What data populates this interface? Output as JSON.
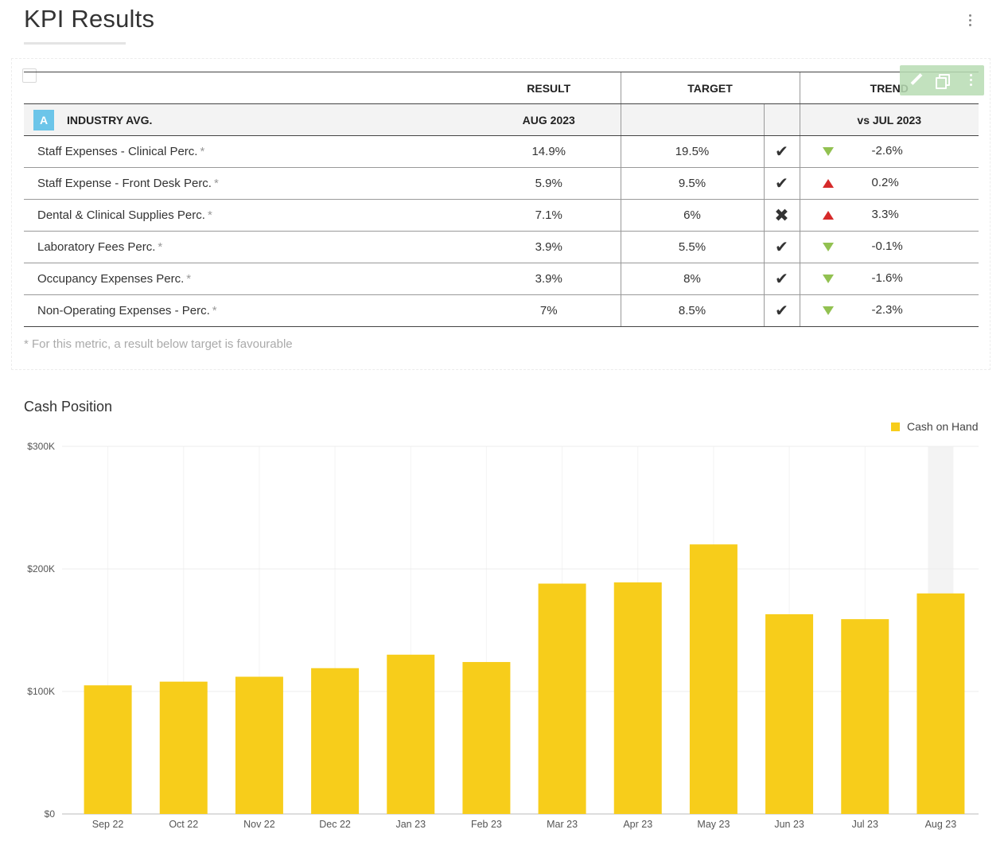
{
  "page": {
    "title": "KPI Results"
  },
  "kpi_table": {
    "headers": {
      "metric": "",
      "result": "RESULT",
      "target": "TARGET",
      "trend": "TREND"
    },
    "group": {
      "badge": "A",
      "label": "INDUSTRY AVG.",
      "result_period": "AUG 2023",
      "trend_period": "vs JUL 2023"
    },
    "rows": [
      {
        "metric": "Staff Expenses - Clinical Perc.",
        "star": "*",
        "result": "14.9%",
        "target": "19.5%",
        "status": "met",
        "trend_dir": "down",
        "trend": "-2.6%"
      },
      {
        "metric": "Staff Expense - Front Desk Perc.",
        "star": "*",
        "result": "5.9%",
        "target": "9.5%",
        "status": "met",
        "trend_dir": "up",
        "trend": "0.2%"
      },
      {
        "metric": "Dental & Clinical Supplies Perc.",
        "star": "*",
        "result": "7.1%",
        "target": "6%",
        "status": "missed",
        "trend_dir": "up",
        "trend": "3.3%"
      },
      {
        "metric": "Laboratory Fees Perc.",
        "star": "*",
        "result": "3.9%",
        "target": "5.5%",
        "status": "met",
        "trend_dir": "down",
        "trend": "-0.1%"
      },
      {
        "metric": "Occupancy Expenses Perc.",
        "star": "*",
        "result": "3.9%",
        "target": "8%",
        "status": "met",
        "trend_dir": "down",
        "trend": "-1.6%"
      },
      {
        "metric": "Non-Operating Expenses - Perc.",
        "star": "*",
        "result": "7%",
        "target": "8.5%",
        "status": "met",
        "trend_dir": "down",
        "trend": "-2.3%"
      }
    ],
    "footnote": "* For this metric, a result below target is favourable",
    "colors": {
      "badge": "#6cc5e9",
      "check": "#7ab648",
      "cross": "#e02828",
      "trend_down": "#92c151",
      "trend_up": "#d62a2a"
    }
  },
  "cash_section": {
    "title": "Cash Position"
  },
  "chart_data": {
    "type": "bar",
    "title": "Cash Position",
    "categories": [
      "Sep 22",
      "Oct 22",
      "Nov 22",
      "Dec 22",
      "Jan 23",
      "Feb 23",
      "Mar 23",
      "Apr 23",
      "May 23",
      "Jun 23",
      "Jul 23",
      "Aug 23"
    ],
    "series": [
      {
        "name": "Cash on Hand",
        "color": "#f7cd1b",
        "values": [
          105000,
          108000,
          112000,
          119000,
          130000,
          124000,
          188000,
          189000,
          220000,
          163000,
          159000,
          180000
        ]
      }
    ],
    "ylim": [
      0,
      300000
    ],
    "yticks": [
      "$0",
      "$100K",
      "$200K",
      "$300K"
    ],
    "ytick_values": [
      0,
      100000,
      200000,
      300000
    ],
    "legend": "top-right",
    "grid": true,
    "highlighted_category": "Aug 23"
  }
}
